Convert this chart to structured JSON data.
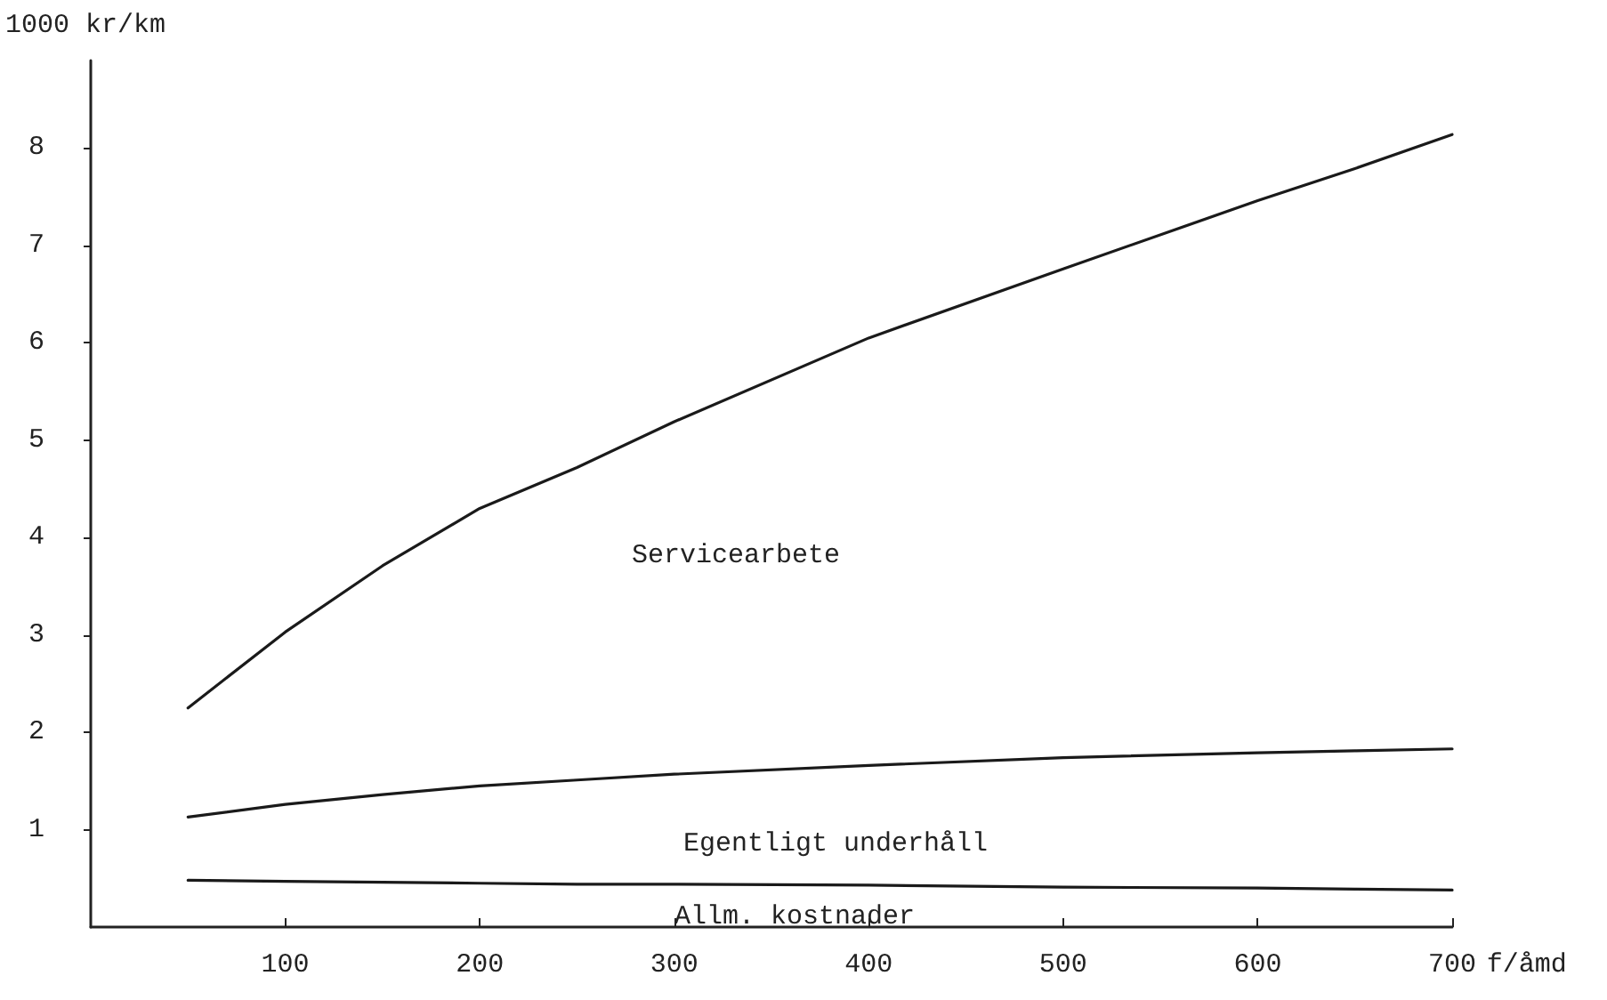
{
  "chart_data": {
    "type": "line",
    "xlabel": "f/åmd",
    "ylabel": "1000 kr/km",
    "xlim": [
      0,
      700
    ],
    "xticks": [
      100,
      200,
      300,
      400,
      500,
      600,
      700
    ],
    "ylim": [
      0,
      8.9
    ],
    "yticks": [
      1,
      2,
      3,
      4,
      5,
      6,
      7,
      8
    ],
    "x": [
      50,
      100,
      150,
      200,
      250,
      300,
      400,
      500,
      600,
      650,
      700
    ],
    "series": [
      {
        "color": "#1a1a1a",
        "values": [
          2.25,
          3.03,
          3.71,
          4.3,
          4.72,
          5.19,
          6.05,
          6.76,
          7.46,
          7.79,
          8.14
        ]
      },
      {
        "color": "#1a1a1a",
        "values": [
          1.13,
          1.26,
          1.36,
          1.45,
          1.51,
          1.57,
          1.66,
          1.74,
          1.79,
          1.81,
          1.83
        ]
      },
      {
        "color": "#1a1a1a",
        "values": [
          0.48,
          0.47,
          0.46,
          0.45,
          0.44,
          0.44,
          0.43,
          0.41,
          0.4,
          0.39,
          0.38
        ]
      }
    ],
    "annotations": [
      "Servicearbete",
      "Egentligt underhåll",
      "Allm. kostnader"
    ],
    "grid": false,
    "marker": "none",
    "line_style": "solid"
  }
}
